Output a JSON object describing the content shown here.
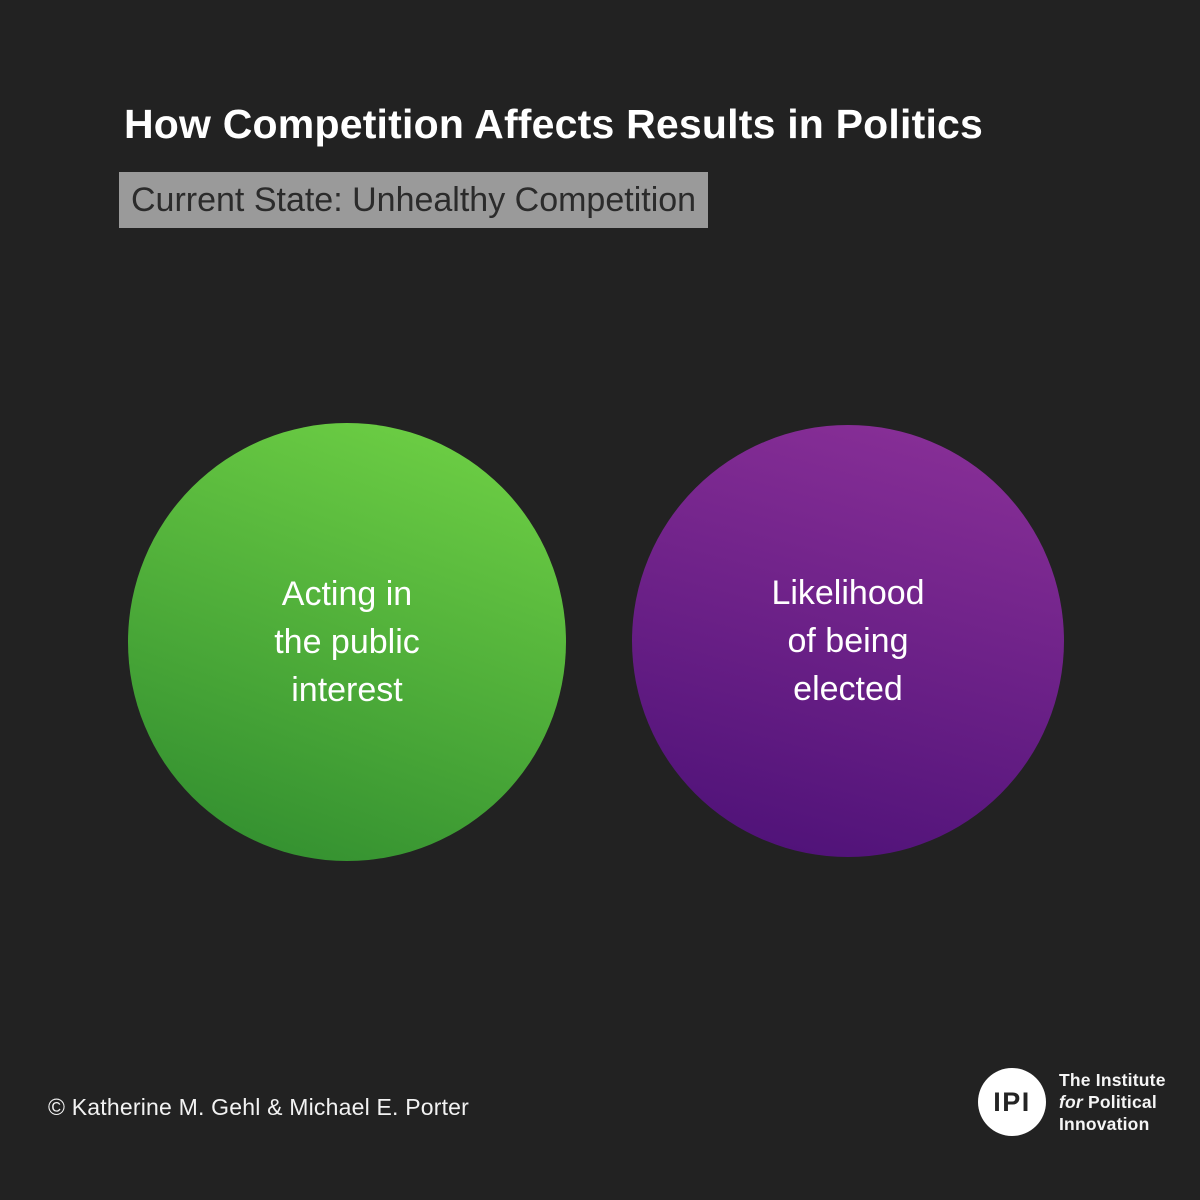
{
  "title": "How Competition Affects Results in Politics",
  "subtitle": "Current State: Unhealthy Competition",
  "circles": [
    {
      "id": "public-interest",
      "lines": [
        "Acting in",
        "the public",
        "interest"
      ]
    },
    {
      "id": "being-elected",
      "lines": [
        "Likelihood",
        "of being",
        "elected"
      ]
    }
  ],
  "copyright": "© Katherine M. Gehl & Michael E. Porter",
  "logo": {
    "monogram": "IPI",
    "org_line1": "The Institute",
    "org_line2_italic": "for",
    "org_line2_rest": "Political",
    "org_line3": "Innovation"
  },
  "colors": {
    "background": "#222222",
    "badge_bg": "#9a9a9a",
    "badge_text": "#2b2b2b",
    "green_top": "#72d446",
    "green_bottom": "#2e8a2e",
    "purple_top": "#8c3199",
    "purple_bottom": "#4b1076"
  }
}
